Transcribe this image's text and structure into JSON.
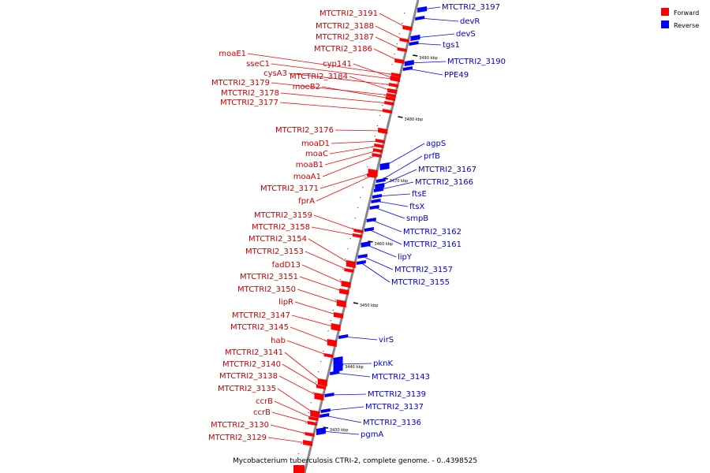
{
  "caption": "Mycobacterium tuberculosis CTRI-2, complete genome. - 0..4398525",
  "legend": {
    "forward": {
      "label": "Forward",
      "color": "#ff0000"
    },
    "reverse": {
      "label": "Reverse",
      "color": "#0000ff"
    }
  },
  "ticks": [
    "3490 kbp",
    "3480 kbp",
    "3470 kbp",
    "3460 kbp",
    "3450 kbp",
    "3440 kbp",
    "3430 kbp"
  ],
  "forward_genes": [
    "MTCTRI2_3191",
    "MTCTRI2_3188",
    "MTCTRI2_3187",
    "MTCTRI2_3186",
    "moaE1",
    "sseC1",
    "cyp141",
    "cysA3",
    "MTCTRI2_3184",
    "MTCTRI2_3179",
    "moeB2",
    "MTCTRI2_3178",
    "MTCTRI2_3177",
    "MTCTRI2_3176",
    "moaD1",
    "moaC",
    "moaB1",
    "moaA1",
    "MTCTRI2_3171",
    "fprA",
    "MTCTRI2_3159",
    "MTCTRI2_3158",
    "MTCTRI2_3154",
    "MTCTRI2_3153",
    "fadD13",
    "MTCTRI2_3151",
    "MTCTRI2_3150",
    "lipR",
    "MTCTRI2_3147",
    "MTCTRI2_3145",
    "hab",
    "MTCTRI2_3141",
    "MTCTRI2_3140",
    "MTCTRI2_3138",
    "MTCTRI2_3135",
    "ccrB",
    "ccrB",
    "MTCTRI2_3130",
    "MTCTRI2_3129"
  ],
  "reverse_genes": [
    "MTCTRI2_3197",
    "devR",
    "devS",
    "tgs1",
    "MTCTRI2_3190",
    "PPE49",
    "agpS",
    "prfB",
    "MTCTRI2_3167",
    "MTCTRI2_3166",
    "ftsE",
    "ftsX",
    "smpB",
    "MTCTRI2_3162",
    "MTCTRI2_3161",
    "lipY",
    "MTCTRI2_3157",
    "MTCTRI2_3155",
    "virS",
    "pknK",
    "MTCTRI2_3143",
    "MTCTRI2_3139",
    "MTCTRI2_3137",
    "MTCTRI2_3136",
    "pgmA"
  ]
}
